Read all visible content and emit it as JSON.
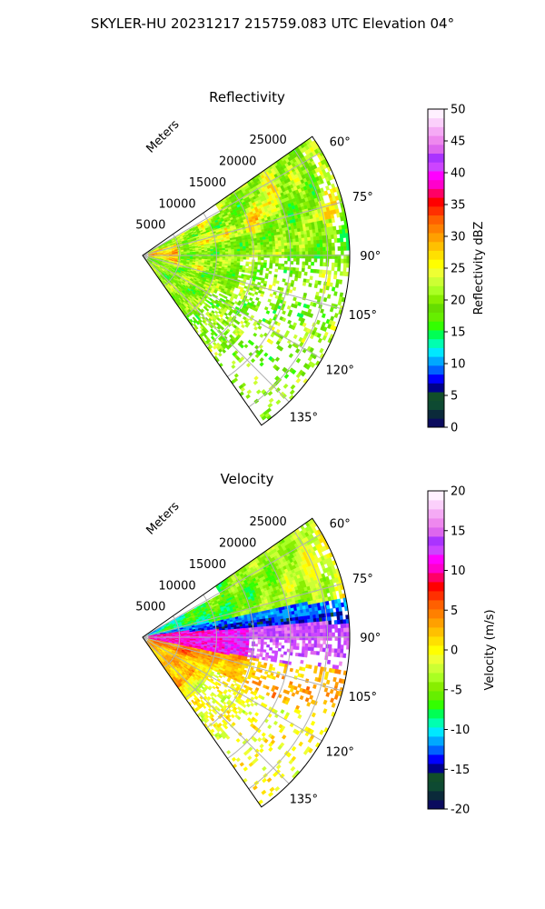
{
  "suptitle": "SKYLER-HU  20231217  215759.083 UTC Elevation 04°",
  "chart_data": [
    {
      "type": "heatmap",
      "projection": "polar-sector",
      "title": "Reflectivity",
      "radial_axis_label": "Meters",
      "radial_ticks": [
        "5000",
        "10000",
        "15000",
        "20000",
        "25000"
      ],
      "azimuth_ticks": [
        "60°",
        "75°",
        "90°",
        "105°",
        "120°",
        "135°"
      ],
      "azimuth_range_deg": [
        55,
        145
      ],
      "range_max_m": 28000,
      "grid": true,
      "colorbar": {
        "label": "Reflectivity dBZ",
        "min": 0,
        "max": 50,
        "ticks": [
          "0",
          "5",
          "10",
          "15",
          "20",
          "25",
          "30",
          "35",
          "40",
          "45",
          "50"
        ],
        "colors": [
          "#0b0b5e",
          "#0b2a3a",
          "#0e4a32",
          "#114e2a",
          "#00008b",
          "#0000ff",
          "#0062ff",
          "#00a8ff",
          "#00e8ff",
          "#00ffb0",
          "#00ff55",
          "#33ff00",
          "#66ee00",
          "#66dd00",
          "#88ee00",
          "#aaff22",
          "#ccff33",
          "#eeff33",
          "#ffff00",
          "#ffe000",
          "#ffc000",
          "#ffa000",
          "#ff8000",
          "#ff6000",
          "#ff3000",
          "#ff0000",
          "#ff0066",
          "#ff00cc",
          "#ff00ff",
          "#cc44ff",
          "#aa33ff",
          "#dd66ee",
          "#ee88ee",
          "#f5aaf5",
          "#fbd0fb",
          "#fff0ff"
        ]
      },
      "field_description": "mostly 15-28 dBZ, streaks up to 35 near 60-75 and close range"
    },
    {
      "type": "heatmap",
      "projection": "polar-sector",
      "title": "Velocity",
      "radial_axis_label": "Meters",
      "radial_ticks": [
        "5000",
        "10000",
        "15000",
        "20000",
        "25000"
      ],
      "azimuth_ticks": [
        "60°",
        "75°",
        "90°",
        "105°",
        "120°",
        "135°"
      ],
      "azimuth_range_deg": [
        55,
        145
      ],
      "range_max_m": 28000,
      "grid": true,
      "colorbar": {
        "label": "Velocity (m/s)",
        "min": -20,
        "max": 20,
        "ticks": [
          "-20",
          "-15",
          "-10",
          "-5",
          "0",
          "5",
          "10",
          "15",
          "20"
        ],
        "colors": [
          "#0b0b5e",
          "#0b2a3a",
          "#0e4a32",
          "#114e2a",
          "#00008b",
          "#0000ff",
          "#0062ff",
          "#00a8ff",
          "#00e8ff",
          "#00ffb0",
          "#00ff55",
          "#33ff00",
          "#66ee00",
          "#88ee00",
          "#aaff22",
          "#ccff33",
          "#eeff33",
          "#ffff00",
          "#ffe000",
          "#ffc000",
          "#ffa000",
          "#ff8000",
          "#ff6000",
          "#ff3000",
          "#ff0000",
          "#ff0066",
          "#ff00cc",
          "#ff00ff",
          "#cc44ff",
          "#aa33ff",
          "#dd66ee",
          "#ee88ee",
          "#f5aaf5",
          "#fbd0fb",
          "#fff0ff"
        ]
      },
      "field_description": "north of ~80° negative (-12 to -5), band 80-95° positive (+8 to +15), south of ~95° near 0 to +5"
    }
  ]
}
